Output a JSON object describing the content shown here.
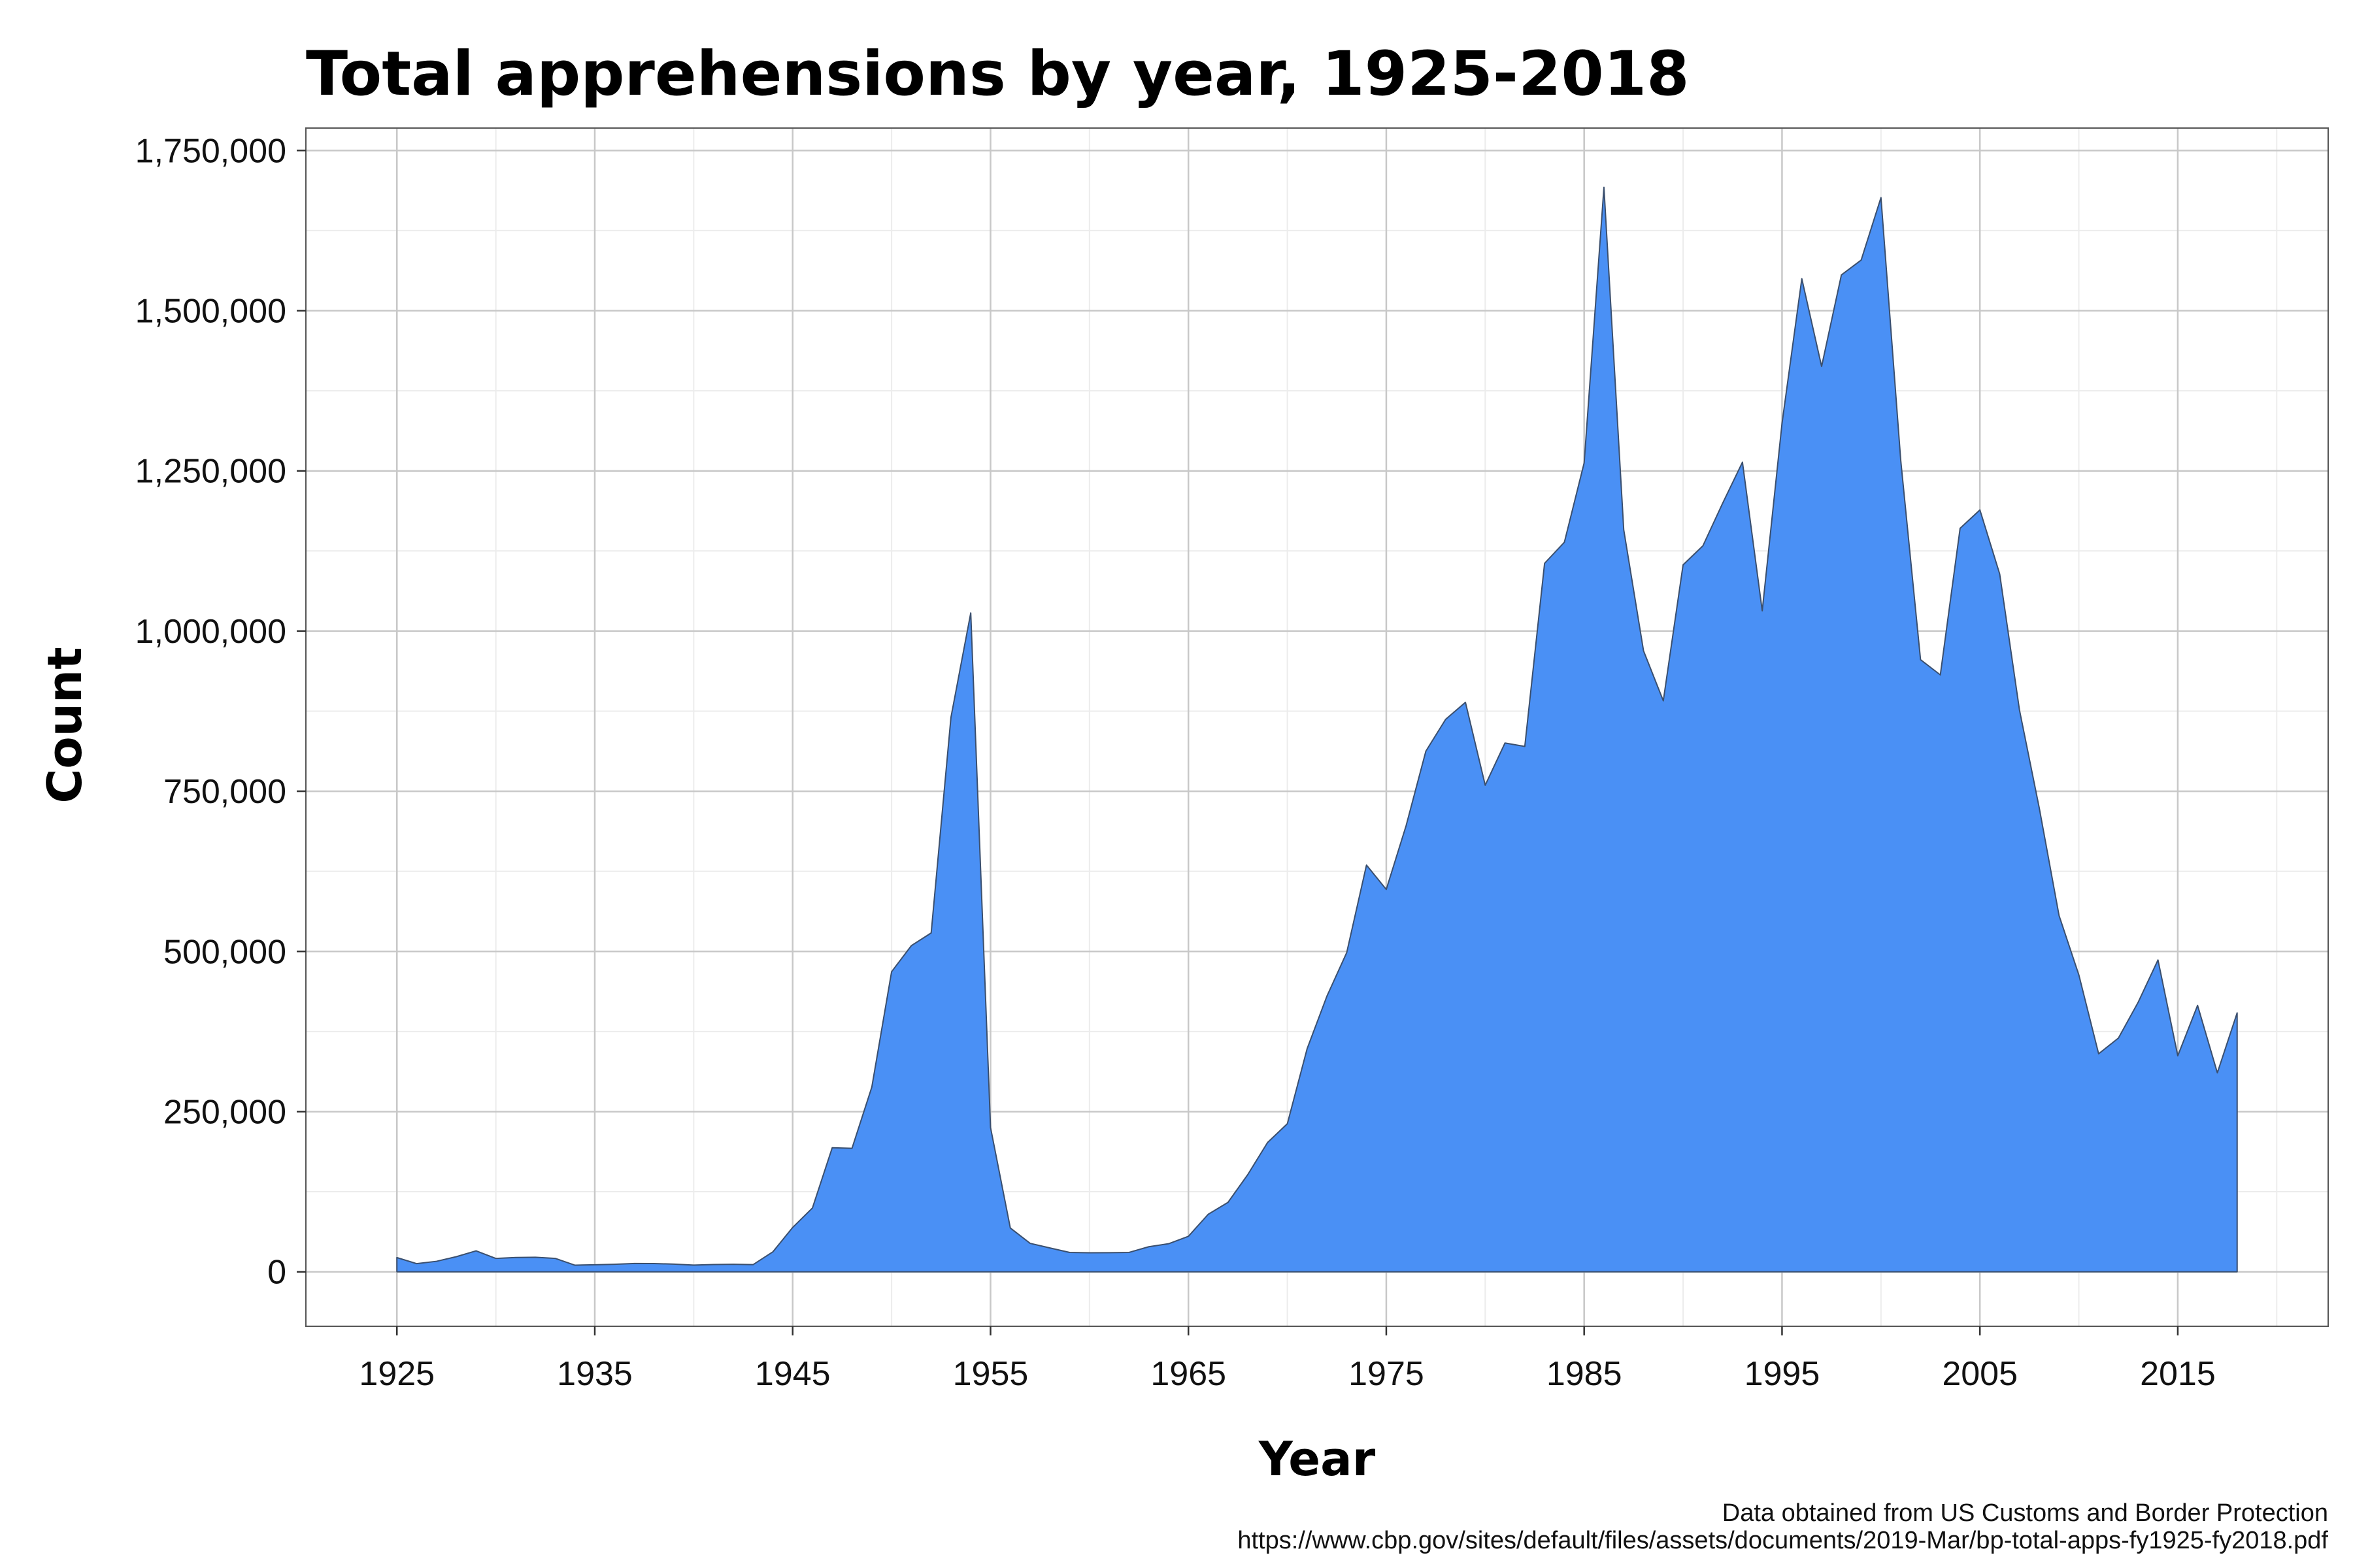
{
  "chart_data": {
    "type": "area",
    "title": "Total apprehensions by year, 1925-2018",
    "xlabel": "Year",
    "ylabel": "Count",
    "xlim": [
      1920.4,
      2022.6
    ],
    "ylim": [
      -85000,
      1785000
    ],
    "x_ticks": [
      1925,
      1935,
      1945,
      1955,
      1965,
      1975,
      1985,
      1995,
      2005,
      2015
    ],
    "x_tick_labels": [
      "1925",
      "1935",
      "1945",
      "1955",
      "1965",
      "1975",
      "1985",
      "1995",
      "2005",
      "2015"
    ],
    "y_ticks": [
      0,
      250000,
      500000,
      750000,
      1000000,
      1250000,
      1500000,
      1750000
    ],
    "y_tick_labels": [
      "0",
      "250,000",
      "500,000",
      "750,000",
      "1,000,000",
      "1,250,000",
      "1,500,000",
      "1,750,000"
    ],
    "grid": true,
    "fill_color": "#4a90f5",
    "line_color": "#3a4f6e",
    "x": [
      1925,
      1926,
      1927,
      1928,
      1929,
      1930,
      1931,
      1932,
      1933,
      1934,
      1935,
      1936,
      1937,
      1938,
      1939,
      1940,
      1941,
      1942,
      1943,
      1944,
      1945,
      1946,
      1947,
      1948,
      1949,
      1950,
      1951,
      1952,
      1953,
      1954,
      1955,
      1956,
      1957,
      1958,
      1959,
      1960,
      1961,
      1962,
      1963,
      1964,
      1965,
      1966,
      1967,
      1968,
      1969,
      1970,
      1971,
      1972,
      1973,
      1974,
      1975,
      1976,
      1977,
      1978,
      1979,
      1980,
      1981,
      1982,
      1983,
      1984,
      1985,
      1986,
      1987,
      1988,
      1989,
      1990,
      1991,
      1992,
      1993,
      1994,
      1995,
      1996,
      1997,
      1998,
      1999,
      2000,
      2001,
      2002,
      2003,
      2004,
      2005,
      2006,
      2007,
      2008,
      2009,
      2010,
      2011,
      2012,
      2013,
      2014,
      2015,
      2016,
      2017,
      2018
    ],
    "values": [
      22199,
      12735,
      16393,
      23566,
      32711,
      20880,
      22276,
      22735,
      20949,
      10319,
      11016,
      11728,
      13054,
      12851,
      12037,
      10492,
      11294,
      11784,
      11175,
      31175,
      69164,
      99591,
      193657,
      192779,
      288253,
      468339,
      509040,
      528815,
      865318,
      1028246,
      225186,
      68420,
      44451,
      37242,
      30196,
      29651,
      29817,
      30272,
      39124,
      43844,
      55349,
      89751,
      108327,
      151705,
      201780,
      231116,
      348178,
      430213,
      498123,
      634777,
      596796,
      696039,
      812541,
      862217,
      888729,
      759420,
      825290,
      819919,
      1105670,
      1138566,
      1262435,
      1692544,
      1158030,
      969214,
      891147,
      1103353,
      1132933,
      1199560,
      1263490,
      1031668,
      1324202,
      1549876,
      1412953,
      1555776,
      1579010,
      1676438,
      1266214,
      955310,
      931557,
      1160395,
      1189031,
      1089092,
      876704,
      723825,
      556041,
      463382,
      340252,
      364768,
      420789,
      486651,
      337117,
      415816,
      310531,
      404142
    ],
    "caption": [
      "Data obtained from US Customs and Border Protection",
      "https://www.cbp.gov/sites/default/files/assets/documents/2019-Mar/bp-total-apps-fy1925-fy2018.pdf"
    ]
  }
}
